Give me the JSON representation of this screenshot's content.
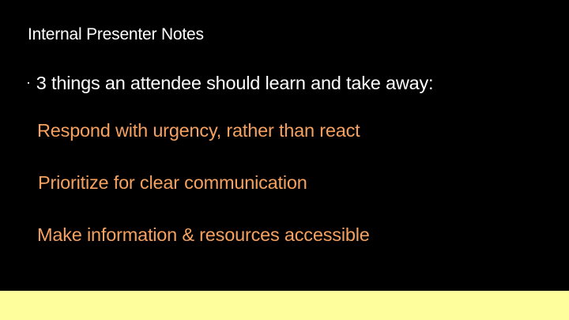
{
  "slide": {
    "heading": "Internal Presenter Notes",
    "bullet_symbol": "·",
    "bullet_text": "3 things an attendee should learn and take away:",
    "takeaways": [
      "Respond with urgency, rather than react",
      "Prioritize for clear communication",
      "Make information & resources accessible"
    ]
  },
  "colors": {
    "background": "#000000",
    "text": "#ffffff",
    "accent": "#f5a160",
    "footer_band": "#fefe9c"
  }
}
